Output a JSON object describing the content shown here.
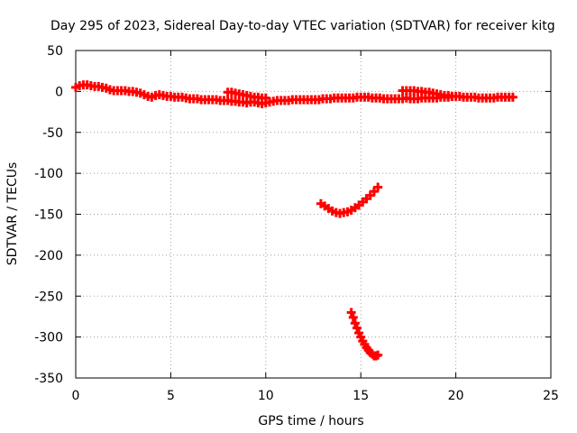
{
  "chart_data": {
    "type": "scatter",
    "title": "Day 295 of 2023, Sidereal Day-to-day VTEC variation (SDTVAR) for receiver kitg",
    "xlabel": "GPS time / hours",
    "ylabel": "SDTVAR / TECUs",
    "xlim": [
      0,
      25
    ],
    "ylim": [
      -350,
      50
    ],
    "xticks": [
      0,
      5,
      10,
      15,
      20,
      25
    ],
    "yticks": [
      -350,
      -300,
      -250,
      -200,
      -150,
      -100,
      -50,
      0,
      50
    ],
    "grid": true,
    "marker": "plus",
    "color": "#ff0000",
    "series": [
      {
        "name": "main",
        "points": [
          [
            0.0,
            5
          ],
          [
            0.2,
            7
          ],
          [
            0.4,
            8
          ],
          [
            0.6,
            8
          ],
          [
            0.8,
            7
          ],
          [
            1.0,
            6
          ],
          [
            1.2,
            6
          ],
          [
            1.4,
            5
          ],
          [
            1.6,
            4
          ],
          [
            1.8,
            2
          ],
          [
            2.0,
            1
          ],
          [
            2.2,
            1
          ],
          [
            2.4,
            1
          ],
          [
            2.6,
            1
          ],
          [
            2.8,
            0
          ],
          [
            3.0,
            0
          ],
          [
            3.2,
            -1
          ],
          [
            3.4,
            -2
          ],
          [
            3.6,
            -4
          ],
          [
            3.8,
            -6
          ],
          [
            4.0,
            -7
          ],
          [
            4.2,
            -5
          ],
          [
            4.4,
            -4
          ],
          [
            4.6,
            -5
          ],
          [
            4.8,
            -6
          ],
          [
            5.0,
            -6
          ],
          [
            5.2,
            -7
          ],
          [
            5.4,
            -7
          ],
          [
            5.6,
            -7
          ],
          [
            5.8,
            -8
          ],
          [
            6.0,
            -9
          ],
          [
            6.2,
            -9
          ],
          [
            6.4,
            -9
          ],
          [
            6.6,
            -10
          ],
          [
            6.8,
            -10
          ],
          [
            7.0,
            -10
          ],
          [
            7.2,
            -10
          ],
          [
            7.4,
            -10
          ],
          [
            7.6,
            -11
          ],
          [
            7.8,
            -11
          ],
          [
            8.0,
            -11
          ],
          [
            8.2,
            -12
          ],
          [
            8.4,
            -12
          ],
          [
            8.6,
            -13
          ],
          [
            8.8,
            -13
          ],
          [
            9.0,
            -14
          ],
          [
            9.2,
            -13
          ],
          [
            9.4,
            -13
          ],
          [
            9.6,
            -14
          ],
          [
            9.8,
            -15
          ],
          [
            10.0,
            -14
          ],
          [
            10.2,
            -13
          ],
          [
            10.4,
            -12
          ],
          [
            10.6,
            -11
          ],
          [
            10.8,
            -11
          ],
          [
            11.0,
            -11
          ],
          [
            11.2,
            -11
          ],
          [
            11.4,
            -10
          ],
          [
            11.6,
            -10
          ],
          [
            11.8,
            -10
          ],
          [
            12.0,
            -10
          ],
          [
            12.2,
            -10
          ],
          [
            12.4,
            -10
          ],
          [
            12.6,
            -10
          ],
          [
            12.8,
            -10
          ],
          [
            13.0,
            -9
          ],
          [
            13.2,
            -9
          ],
          [
            13.4,
            -9
          ],
          [
            13.6,
            -8
          ],
          [
            13.8,
            -8
          ],
          [
            14.0,
            -8
          ],
          [
            14.2,
            -8
          ],
          [
            14.4,
            -8
          ],
          [
            14.6,
            -8
          ],
          [
            14.8,
            -7
          ],
          [
            15.0,
            -7
          ],
          [
            15.2,
            -7
          ],
          [
            15.4,
            -7
          ],
          [
            15.6,
            -8
          ],
          [
            15.8,
            -8
          ],
          [
            16.0,
            -8
          ],
          [
            16.2,
            -9
          ],
          [
            16.4,
            -9
          ],
          [
            16.6,
            -9
          ],
          [
            16.8,
            -9
          ],
          [
            17.0,
            -9
          ],
          [
            17.2,
            -9
          ],
          [
            17.4,
            -8
          ],
          [
            17.6,
            -9
          ],
          [
            17.8,
            -9
          ],
          [
            18.0,
            -9
          ],
          [
            18.2,
            -8
          ],
          [
            18.4,
            -8
          ],
          [
            18.6,
            -8
          ],
          [
            18.8,
            -8
          ],
          [
            19.0,
            -8
          ],
          [
            19.2,
            -7
          ],
          [
            19.4,
            -7
          ],
          [
            19.6,
            -7
          ],
          [
            19.8,
            -6
          ],
          [
            20.0,
            -6
          ],
          [
            20.2,
            -6
          ],
          [
            20.4,
            -7
          ],
          [
            20.6,
            -7
          ],
          [
            20.8,
            -7
          ],
          [
            21.0,
            -7
          ],
          [
            21.2,
            -8
          ],
          [
            21.4,
            -8
          ],
          [
            21.6,
            -8
          ],
          [
            21.8,
            -8
          ],
          [
            22.0,
            -8
          ],
          [
            22.2,
            -7
          ],
          [
            22.4,
            -7
          ],
          [
            22.6,
            -7
          ],
          [
            22.8,
            -7
          ],
          [
            23.0,
            -7
          ]
        ]
      },
      {
        "name": "upper-branch",
        "points": [
          [
            8.0,
            -1
          ],
          [
            8.2,
            -1
          ],
          [
            8.4,
            -2
          ],
          [
            8.6,
            -3
          ],
          [
            8.8,
            -4
          ],
          [
            9.0,
            -5
          ],
          [
            9.2,
            -6
          ],
          [
            9.4,
            -7
          ],
          [
            9.6,
            -7
          ],
          [
            9.8,
            -8
          ],
          [
            10.0,
            -8
          ],
          [
            17.2,
            1
          ],
          [
            17.4,
            1
          ],
          [
            17.6,
            1
          ],
          [
            17.8,
            1
          ],
          [
            18.0,
            0
          ],
          [
            18.2,
            0
          ],
          [
            18.4,
            -1
          ],
          [
            18.6,
            -1
          ],
          [
            18.8,
            -2
          ],
          [
            19.0,
            -3
          ],
          [
            19.2,
            -4
          ],
          [
            19.4,
            -5
          ],
          [
            19.6,
            -5
          ],
          [
            19.8,
            -6
          ]
        ]
      },
      {
        "name": "arc-1",
        "points": [
          [
            12.9,
            -137
          ],
          [
            13.1,
            -140
          ],
          [
            13.3,
            -143
          ],
          [
            13.5,
            -146
          ],
          [
            13.7,
            -148
          ],
          [
            13.9,
            -149
          ],
          [
            14.1,
            -148
          ],
          [
            14.3,
            -147
          ],
          [
            14.5,
            -145
          ],
          [
            14.7,
            -142
          ],
          [
            14.9,
            -139
          ],
          [
            15.1,
            -135
          ],
          [
            15.3,
            -131
          ],
          [
            15.5,
            -127
          ],
          [
            15.7,
            -122
          ],
          [
            15.9,
            -117
          ]
        ]
      },
      {
        "name": "arc-2",
        "points": [
          [
            14.5,
            -270
          ],
          [
            14.6,
            -276
          ],
          [
            14.7,
            -283
          ],
          [
            14.8,
            -289
          ],
          [
            14.9,
            -295
          ],
          [
            15.0,
            -300
          ],
          [
            15.1,
            -305
          ],
          [
            15.2,
            -309
          ],
          [
            15.3,
            -313
          ],
          [
            15.4,
            -316
          ],
          [
            15.5,
            -319
          ],
          [
            15.6,
            -321
          ],
          [
            15.7,
            -323
          ],
          [
            15.8,
            -323
          ],
          [
            15.9,
            -322
          ]
        ]
      }
    ]
  }
}
